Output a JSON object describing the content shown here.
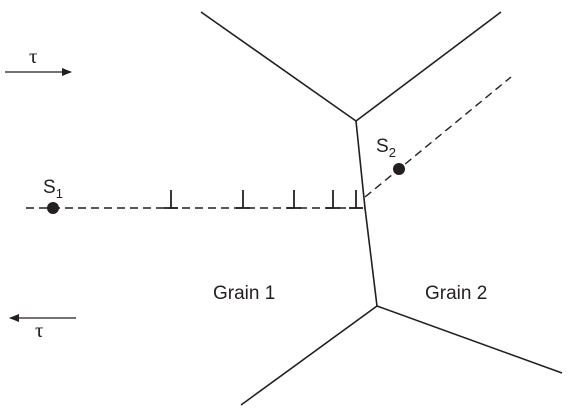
{
  "diagram": {
    "stress_top": "τ",
    "stress_bottom": "τ",
    "source_1": {
      "letter": "S",
      "sub": "1"
    },
    "source_2": {
      "letter": "S",
      "sub": "2"
    },
    "grain_1": "Grain 1",
    "grain_2": "Grain 2",
    "dislocation_count": 5,
    "colors": {
      "ink": "#231f20",
      "background": "#ffffff"
    }
  }
}
